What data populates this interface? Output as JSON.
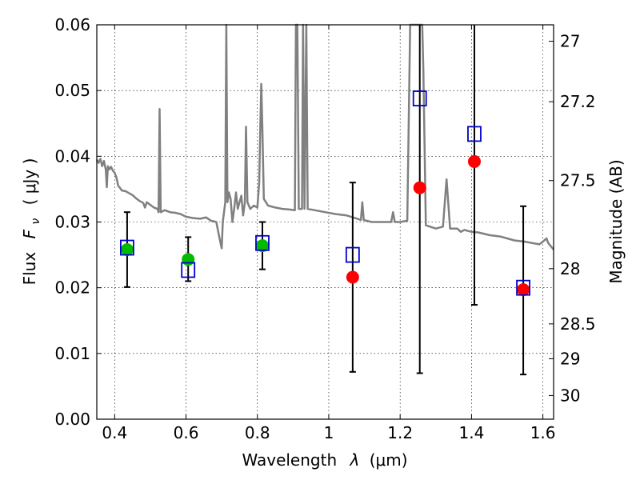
{
  "chart_data": {
    "type": "scatter",
    "title": "",
    "xlabel_prefix": "Wavelength",
    "xlabel_symbol": "λ",
    "xlabel_unit": "(μm)",
    "ylabel_prefix": "Flux",
    "ylabel_symbol": "F",
    "ylabel_subscript": "ν",
    "ylabel_unit": "( μJy )",
    "y2label": "Magnitude (AB)",
    "xlim": [
      0.35,
      1.63
    ],
    "ylim": [
      0.0,
      0.06
    ],
    "grid": true,
    "xticks": [
      0.4,
      0.6,
      0.8,
      1.0,
      1.2,
      1.4,
      1.6
    ],
    "xtick_labels": [
      "0.4",
      "0.6",
      "0.8",
      "1",
      "1.2",
      "1.4",
      "1.6"
    ],
    "yticks": [
      0.0,
      0.01,
      0.02,
      0.03,
      0.04,
      0.05,
      0.06
    ],
    "ytick_labels": [
      "0.00",
      "0.01",
      "0.02",
      "0.03",
      "0.04",
      "0.05",
      "0.06"
    ],
    "y2ticks": [
      {
        "flux": 0.0575,
        "label": "27"
      },
      {
        "flux": 0.0483,
        "label": "27.2"
      },
      {
        "flux": 0.0363,
        "label": "27.5"
      },
      {
        "flux": 0.0229,
        "label": "28"
      },
      {
        "flux": 0.0145,
        "label": "28.5"
      },
      {
        "flux": 0.0092,
        "label": "29"
      },
      {
        "flux": 0.0036,
        "label": "30"
      }
    ],
    "colors": {
      "model": "#808080",
      "green": "#00bb00",
      "red": "#ff0000",
      "box": "#0000cc",
      "errorbar": "#000000"
    },
    "series": [
      {
        "marker": "circle",
        "color": "green",
        "points": [
          {
            "x": 0.435,
            "y": 0.0258,
            "err_low": 0.0201,
            "err_high": 0.0315
          },
          {
            "x": 0.606,
            "y": 0.0243,
            "err_low": 0.021,
            "err_high": 0.0277
          },
          {
            "x": 0.814,
            "y": 0.0264,
            "err_low": 0.0228,
            "err_high": 0.03
          }
        ]
      },
      {
        "marker": "circle",
        "color": "red",
        "points": [
          {
            "x": 1.067,
            "y": 0.0216,
            "err_low": 0.0072,
            "err_high": 0.036
          },
          {
            "x": 1.255,
            "y": 0.0352,
            "err_low": 0.007,
            "err_high": 0.06
          },
          {
            "x": 1.408,
            "y": 0.0392,
            "err_low": 0.0174,
            "err_high": 0.06
          },
          {
            "x": 1.545,
            "y": 0.0197,
            "err_low": 0.0068,
            "err_high": 0.0324
          }
        ]
      },
      {
        "marker": "square",
        "color": "box",
        "points": [
          {
            "x": 0.435,
            "y": 0.0261
          },
          {
            "x": 0.606,
            "y": 0.0227
          },
          {
            "x": 0.814,
            "y": 0.0268
          },
          {
            "x": 1.067,
            "y": 0.025
          },
          {
            "x": 1.255,
            "y": 0.0488
          },
          {
            "x": 1.408,
            "y": 0.0434
          },
          {
            "x": 1.545,
            "y": 0.02
          }
        ]
      }
    ],
    "model_spectrum": [
      [
        0.35,
        0.0395
      ],
      [
        0.355,
        0.039
      ],
      [
        0.36,
        0.0396
      ],
      [
        0.365,
        0.0385
      ],
      [
        0.37,
        0.0393
      ],
      [
        0.375,
        0.038
      ],
      [
        0.378,
        0.0353
      ],
      [
        0.381,
        0.0385
      ],
      [
        0.385,
        0.038
      ],
      [
        0.39,
        0.0384
      ],
      [
        0.395,
        0.0378
      ],
      [
        0.4,
        0.0375
      ],
      [
        0.405,
        0.0368
      ],
      [
        0.41,
        0.0355
      ],
      [
        0.415,
        0.0352
      ],
      [
        0.42,
        0.0348
      ],
      [
        0.43,
        0.0347
      ],
      [
        0.44,
        0.0344
      ],
      [
        0.45,
        0.0341
      ],
      [
        0.46,
        0.0336
      ],
      [
        0.47,
        0.0332
      ],
      [
        0.48,
        0.0329
      ],
      [
        0.485,
        0.0322
      ],
      [
        0.49,
        0.033
      ],
      [
        0.5,
        0.0326
      ],
      [
        0.51,
        0.0322
      ],
      [
        0.52,
        0.032
      ],
      [
        0.523,
        0.0315
      ],
      [
        0.526,
        0.0472
      ],
      [
        0.529,
        0.0315
      ],
      [
        0.54,
        0.0318
      ],
      [
        0.555,
        0.0315
      ],
      [
        0.57,
        0.0314
      ],
      [
        0.585,
        0.0312
      ],
      [
        0.6,
        0.0308
      ],
      [
        0.62,
        0.0306
      ],
      [
        0.64,
        0.0305
      ],
      [
        0.656,
        0.0307
      ],
      [
        0.67,
        0.0302
      ],
      [
        0.685,
        0.03
      ],
      [
        0.692,
        0.028
      ],
      [
        0.7,
        0.026
      ],
      [
        0.703,
        0.03
      ],
      [
        0.71,
        0.033
      ],
      [
        0.713,
        0.06
      ],
      [
        0.716,
        0.033
      ],
      [
        0.72,
        0.0345
      ],
      [
        0.725,
        0.0335
      ],
      [
        0.73,
        0.03
      ],
      [
        0.735,
        0.032
      ],
      [
        0.74,
        0.0345
      ],
      [
        0.745,
        0.032
      ],
      [
        0.75,
        0.033
      ],
      [
        0.755,
        0.034
      ],
      [
        0.76,
        0.031
      ],
      [
        0.765,
        0.033
      ],
      [
        0.768,
        0.0445
      ],
      [
        0.772,
        0.033
      ],
      [
        0.78,
        0.032
      ],
      [
        0.79,
        0.0325
      ],
      [
        0.8,
        0.0322
      ],
      [
        0.805,
        0.036
      ],
      [
        0.808,
        0.044
      ],
      [
        0.811,
        0.051
      ],
      [
        0.814,
        0.044
      ],
      [
        0.818,
        0.0335
      ],
      [
        0.83,
        0.0325
      ],
      [
        0.85,
        0.0322
      ],
      [
        0.87,
        0.032
      ],
      [
        0.89,
        0.0319
      ],
      [
        0.905,
        0.0318
      ],
      [
        0.908,
        0.06
      ],
      [
        0.912,
        0.06
      ],
      [
        0.916,
        0.032
      ],
      [
        0.925,
        0.032
      ],
      [
        0.928,
        0.06
      ],
      [
        0.932,
        0.032
      ],
      [
        0.937,
        0.06
      ],
      [
        0.941,
        0.032
      ],
      [
        0.96,
        0.0318
      ],
      [
        0.99,
        0.0315
      ],
      [
        1.02,
        0.0312
      ],
      [
        1.05,
        0.031
      ],
      [
        1.08,
        0.0305
      ],
      [
        1.09,
        0.0303
      ],
      [
        1.094,
        0.033
      ],
      [
        1.098,
        0.0303
      ],
      [
        1.12,
        0.03
      ],
      [
        1.15,
        0.03
      ],
      [
        1.175,
        0.03
      ],
      [
        1.18,
        0.0315
      ],
      [
        1.185,
        0.03
      ],
      [
        1.2,
        0.03
      ],
      [
        1.22,
        0.0302
      ],
      [
        1.228,
        0.06
      ],
      [
        1.262,
        0.06
      ],
      [
        1.265,
        0.053
      ],
      [
        1.272,
        0.0295
      ],
      [
        1.3,
        0.029
      ],
      [
        1.32,
        0.0293
      ],
      [
        1.33,
        0.0365
      ],
      [
        1.34,
        0.029
      ],
      [
        1.36,
        0.029
      ],
      [
        1.37,
        0.0285
      ],
      [
        1.38,
        0.0288
      ],
      [
        1.4,
        0.0285
      ],
      [
        1.42,
        0.0284
      ],
      [
        1.45,
        0.028
      ],
      [
        1.48,
        0.0278
      ],
      [
        1.5,
        0.0275
      ],
      [
        1.52,
        0.0272
      ],
      [
        1.55,
        0.027
      ],
      [
        1.57,
        0.0268
      ],
      [
        1.59,
        0.0266
      ],
      [
        1.6,
        0.027
      ],
      [
        1.61,
        0.0275
      ],
      [
        1.615,
        0.0268
      ],
      [
        1.63,
        0.0258
      ]
    ]
  }
}
